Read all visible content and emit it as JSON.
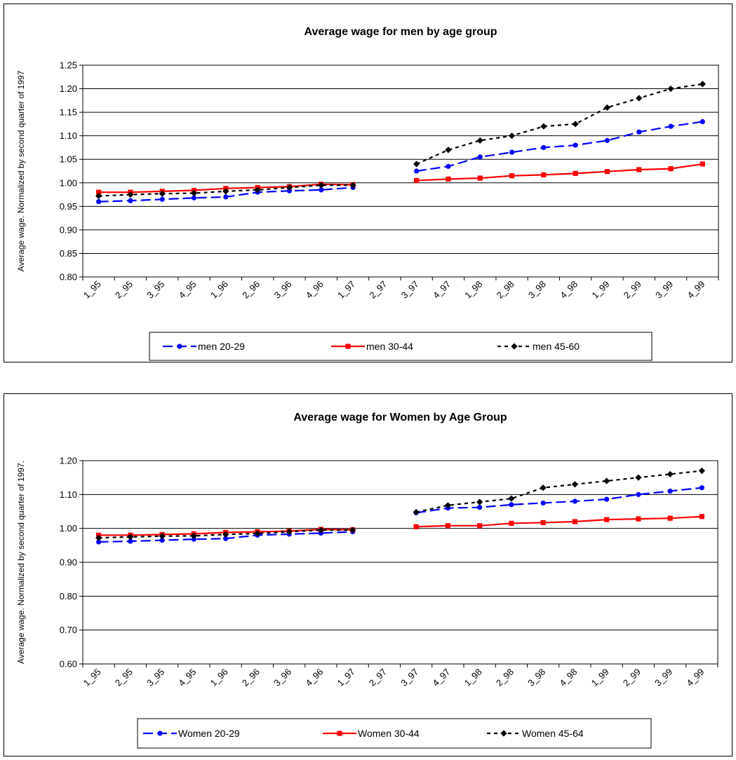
{
  "chart_data": [
    {
      "type": "line",
      "title": "Average wage for men by age group",
      "ylabel": "Average wage. Normalized by second quarter of 1997",
      "xlabel": "",
      "categories": [
        "1_95",
        "2_95",
        "3_95",
        "4_95",
        "1_96",
        "2_96",
        "3_96",
        "4_96",
        "1_97",
        "2_97",
        "3_97",
        "4_97",
        "1_98",
        "2_98",
        "3_98",
        "4_98",
        "1_99",
        "2_99",
        "3_99",
        "4_99"
      ],
      "y_ticks": [
        "0.80",
        "0.85",
        "0.90",
        "0.95",
        "1.00",
        "1.05",
        "1.10",
        "1.15",
        "1.20",
        "1.25"
      ],
      "ylim": [
        0.8,
        1.25
      ],
      "grid": true,
      "legend_position": "bottom",
      "series": [
        {
          "name": "men 20-29",
          "color": "#0000ff",
          "line_style": "long-dash",
          "marker": "circle",
          "values": [
            0.96,
            0.962,
            0.965,
            0.968,
            0.97,
            0.98,
            0.983,
            0.985,
            0.99,
            null,
            1.025,
            1.035,
            1.055,
            1.065,
            1.075,
            1.08,
            1.09,
            1.108,
            1.12,
            1.13
          ]
        },
        {
          "name": "men 30-44",
          "color": "#ff0000",
          "line_style": "solid",
          "marker": "square",
          "values": [
            0.98,
            0.98,
            0.982,
            0.984,
            0.988,
            0.99,
            0.992,
            0.997,
            0.996,
            null,
            1.005,
            1.008,
            1.01,
            1.015,
            1.017,
            1.02,
            1.024,
            1.028,
            1.03,
            1.04
          ]
        },
        {
          "name": "men 45-60",
          "color": "#000000",
          "line_style": "short-dash",
          "marker": "diamond",
          "values": [
            0.972,
            0.975,
            0.977,
            0.978,
            0.982,
            0.985,
            0.99,
            0.995,
            0.995,
            null,
            1.04,
            1.07,
            1.09,
            1.1,
            1.12,
            1.125,
            1.16,
            1.18,
            1.2,
            1.21
          ]
        }
      ]
    },
    {
      "type": "line",
      "title": "Average wage for Women by Age Group",
      "ylabel": "Average wage. Normalized by second quarter of 1997.",
      "xlabel": "",
      "categories": [
        "1_95",
        "2_95",
        "3_95",
        "4_95",
        "1_96",
        "2_96",
        "3_96",
        "4_96",
        "1_97",
        "2_97",
        "3_97",
        "4_97",
        "1_98",
        "2_98",
        "3_98",
        "4_98",
        "1_99",
        "2_99",
        "3_99",
        "4_99"
      ],
      "y_ticks": [
        "0.60",
        "0.70",
        "0.80",
        "0.90",
        "1.00",
        "1.10",
        "1.20"
      ],
      "ylim": [
        0.6,
        1.2
      ],
      "grid": true,
      "legend_position": "bottom",
      "series": [
        {
          "name": "Women 20-29",
          "color": "#0000ff",
          "line_style": "long-dash",
          "marker": "circle",
          "values": [
            0.96,
            0.962,
            0.965,
            0.968,
            0.97,
            0.98,
            0.983,
            0.986,
            0.99,
            null,
            1.046,
            1.06,
            1.062,
            1.07,
            1.075,
            1.08,
            1.086,
            1.1,
            1.11,
            1.12
          ]
        },
        {
          "name": "Women 30-44",
          "color": "#ff0000",
          "line_style": "solid",
          "marker": "square",
          "values": [
            0.98,
            0.98,
            0.982,
            0.984,
            0.988,
            0.99,
            0.992,
            0.997,
            0.996,
            null,
            1.005,
            1.008,
            1.008,
            1.015,
            1.017,
            1.02,
            1.026,
            1.028,
            1.03,
            1.035
          ]
        },
        {
          "name": "Women 45-64",
          "color": "#000000",
          "line_style": "short-dash",
          "marker": "diamond",
          "values": [
            0.972,
            0.975,
            0.977,
            0.978,
            0.982,
            0.985,
            0.99,
            0.995,
            0.995,
            null,
            1.048,
            1.068,
            1.078,
            1.088,
            1.12,
            1.13,
            1.14,
            1.15,
            1.16,
            1.17
          ]
        }
      ]
    }
  ]
}
